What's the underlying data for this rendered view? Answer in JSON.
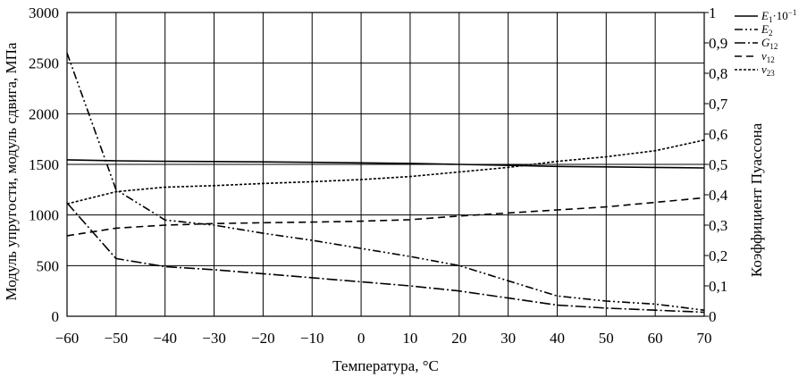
{
  "chart_data": {
    "type": "line",
    "title": "",
    "xlabel": "Температура, °C",
    "ylabel_left": "Модуль упругости, модуль сдвига, МПа",
    "ylabel_right": "Коэффициент Пуассона",
    "xlim": [
      -60,
      70
    ],
    "ylim_left": [
      0,
      3000
    ],
    "ylim_right": [
      0,
      1
    ],
    "grid": true,
    "legend_position": "top-right",
    "x_ticks": [
      "−60",
      "−50",
      "−40",
      "−30",
      "−20",
      "−10",
      "0",
      "10",
      "20",
      "30",
      "40",
      "50",
      "60",
      "70"
    ],
    "y_left_ticks": [
      "0",
      "500",
      "1000",
      "1500",
      "2000",
      "2500",
      "3000"
    ],
    "y_right_ticks": [
      "0",
      "0,1",
      "0,2",
      "0,3",
      "0,4",
      "0,5",
      "0,6",
      "0,7",
      "0,8",
      "0,9",
      "1"
    ],
    "series": [
      {
        "name": "E1·10−1",
        "legend": {
          "main": "E",
          "sub": "1",
          "suffix": "·10",
          "sup": "−1"
        },
        "axis": "left",
        "dash": "",
        "x": [
          -60,
          -50,
          -40,
          -30,
          -20,
          -10,
          0,
          10,
          20,
          30,
          40,
          50,
          60,
          70
        ],
        "y": [
          1545,
          1535,
          1530,
          1528,
          1525,
          1520,
          1515,
          1510,
          1500,
          1490,
          1480,
          1475,
          1470,
          1465
        ]
      },
      {
        "name": "E2",
        "legend": {
          "main": "E",
          "sub": "2",
          "suffix": "",
          "sup": ""
        },
        "axis": "left",
        "dash": "9,3,2,3,2,3",
        "x": [
          -60,
          -50,
          -40,
          -30,
          -20,
          -10,
          0,
          10,
          20,
          30,
          40,
          50,
          60,
          70
        ],
        "y": [
          2600,
          1250,
          950,
          900,
          820,
          750,
          670,
          590,
          500,
          350,
          200,
          150,
          120,
          60
        ]
      },
      {
        "name": "G12",
        "legend": {
          "main": "G",
          "sub": "12",
          "suffix": "",
          "sup": ""
        },
        "axis": "left",
        "dash": "12,3,2,3",
        "x": [
          -60,
          -50,
          -40,
          -30,
          -20,
          -10,
          0,
          10,
          20,
          30,
          40,
          50,
          60,
          70
        ],
        "y": [
          1120,
          570,
          490,
          460,
          420,
          380,
          340,
          300,
          250,
          180,
          110,
          80,
          60,
          40
        ]
      },
      {
        "name": "ν12",
        "legend": {
          "main": "ν",
          "sub": "12",
          "suffix": "",
          "sup": ""
        },
        "axis": "right",
        "dash": "8,5",
        "x": [
          -60,
          -50,
          -40,
          -30,
          -20,
          -10,
          0,
          10,
          20,
          30,
          40,
          50,
          60,
          70
        ],
        "y": [
          0.265,
          0.29,
          0.3,
          0.305,
          0.308,
          0.31,
          0.313,
          0.318,
          0.33,
          0.34,
          0.35,
          0.36,
          0.375,
          0.39
        ]
      },
      {
        "name": "ν23",
        "legend": {
          "main": "ν",
          "sub": "23",
          "suffix": "",
          "sup": ""
        },
        "axis": "right",
        "dash": "3,2",
        "x": [
          -60,
          -50,
          -40,
          -30,
          -20,
          -10,
          0,
          10,
          20,
          30,
          40,
          50,
          60,
          70
        ],
        "y": [
          0.37,
          0.41,
          0.425,
          0.43,
          0.437,
          0.443,
          0.45,
          0.46,
          0.475,
          0.49,
          0.51,
          0.525,
          0.545,
          0.58
        ]
      }
    ]
  }
}
